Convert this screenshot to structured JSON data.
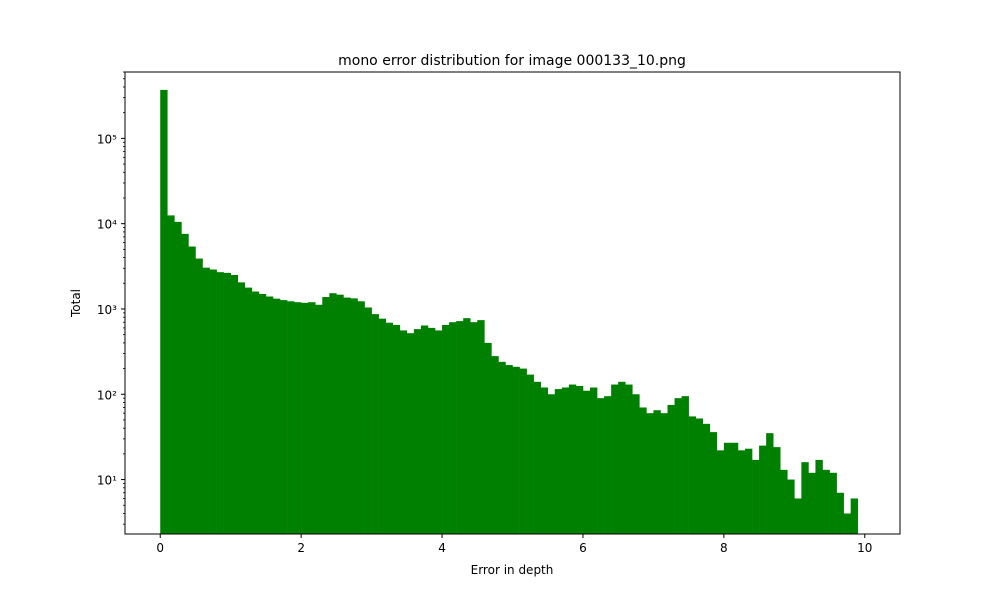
{
  "chart_data": {
    "type": "bar",
    "title": "mono error distribution for image 000133_10.png",
    "xlabel": "Error in depth",
    "ylabel": "Total",
    "x_ticks": [
      0,
      2,
      4,
      6,
      8,
      10
    ],
    "y_scale": "log",
    "y_major_ticks": [
      10,
      100,
      1000,
      10000,
      100000
    ],
    "y_tick_labels": [
      "10¹",
      "10²",
      "10³",
      "10⁴",
      "10⁵"
    ],
    "xlim": [
      -0.5,
      10.5
    ],
    "ylim": [
      2.3,
      600000
    ],
    "bin_width": 0.1,
    "bin_start": 0,
    "color": "#008000",
    "grid": false,
    "values": [
      370000,
      12500,
      10500,
      7600,
      5400,
      3900,
      3050,
      2900,
      2700,
      2650,
      2500,
      2050,
      1780,
      1600,
      1500,
      1400,
      1320,
      1270,
      1230,
      1200,
      1180,
      1200,
      1120,
      1380,
      1530,
      1470,
      1360,
      1330,
      1230,
      1040,
      870,
      770,
      690,
      650,
      560,
      520,
      580,
      640,
      600,
      560,
      650,
      700,
      720,
      780,
      700,
      740,
      400,
      280,
      240,
      220,
      210,
      200,
      170,
      140,
      120,
      100,
      115,
      120,
      130,
      125,
      110,
      120,
      90,
      95,
      130,
      140,
      130,
      100,
      70,
      60,
      65,
      60,
      75,
      90,
      95,
      55,
      52,
      45,
      36,
      22,
      27,
      27,
      22,
      23,
      17,
      25,
      35,
      24,
      13,
      10,
      6,
      16,
      12,
      17,
      13,
      12,
      7,
      4,
      6
    ]
  }
}
